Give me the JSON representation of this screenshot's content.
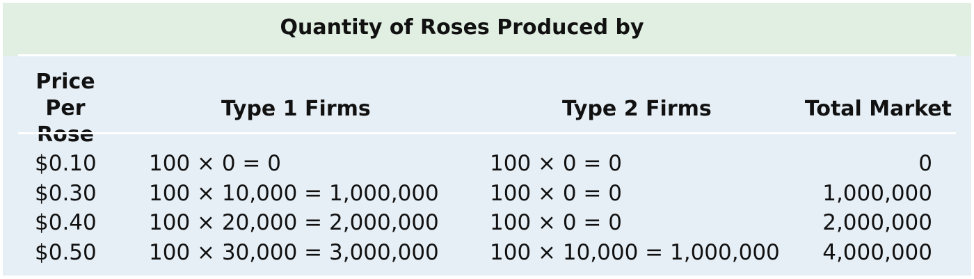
{
  "table": {
    "title": "Quantity of Roses Produced by",
    "headers": {
      "price": "Price Per Rose",
      "type1": "Type 1 Firms",
      "type2": "Type 2 Firms",
      "total": "Total Market"
    },
    "rows": [
      {
        "price": "$0.10",
        "type1": "100 × 0 = 0",
        "type2": "100 × 0 = 0",
        "total": "0"
      },
      {
        "price": "$0.30",
        "type1": "100 × 10,000 = 1,000,000",
        "type2": "100 × 0 = 0",
        "total": "1,000,000"
      },
      {
        "price": "$0.40",
        "type1": "100 × 20,000 = 2,000,000",
        "type2": "100 × 0 = 0",
        "total": "2,000,000"
      },
      {
        "price": "$0.50",
        "type1": "100 × 30,000 = 3,000,000",
        "type2": "100 × 10,000 = 1,000,000",
        "total": "4,000,000"
      }
    ]
  }
}
